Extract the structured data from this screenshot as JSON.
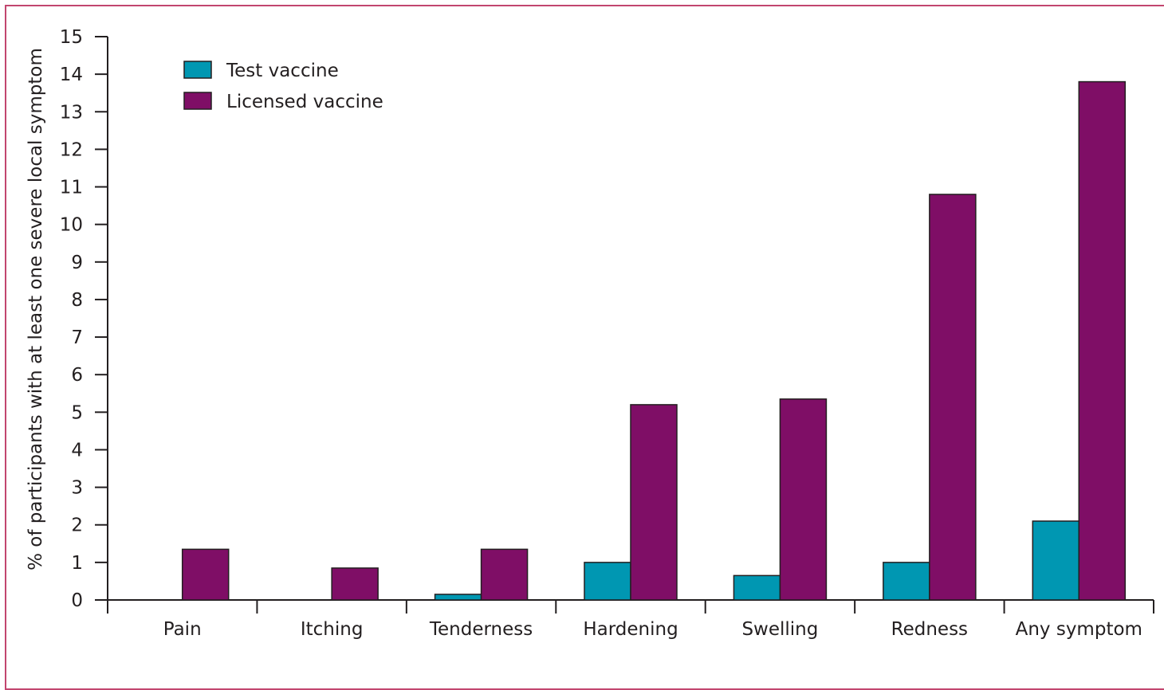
{
  "chart_data": {
    "type": "bar",
    "title": "",
    "xlabel": "",
    "ylabel": "% of participants with at least one severe local symptom",
    "ylim": [
      0,
      15
    ],
    "yticks": [
      0,
      1,
      2,
      3,
      4,
      5,
      6,
      7,
      8,
      9,
      10,
      11,
      12,
      13,
      14,
      15
    ],
    "categories": [
      "Pain",
      "Itching",
      "Tenderness",
      "Hardening",
      "Swelling",
      "Redness",
      "Any symptom"
    ],
    "series": [
      {
        "name": "Test vaccine",
        "color": "#0097b2",
        "values": [
          0,
          0,
          0.15,
          1.0,
          0.65,
          1.0,
          2.1
        ]
      },
      {
        "name": "Licensed vaccine",
        "color": "#7f0e66",
        "values": [
          1.35,
          0.85,
          1.35,
          5.2,
          5.35,
          10.8,
          13.8
        ]
      }
    ],
    "legend_position": "top-left",
    "grid": false
  },
  "colors": {
    "frame": "#c2466f",
    "axis": "#231f20",
    "bar_outline": "#231f20"
  }
}
